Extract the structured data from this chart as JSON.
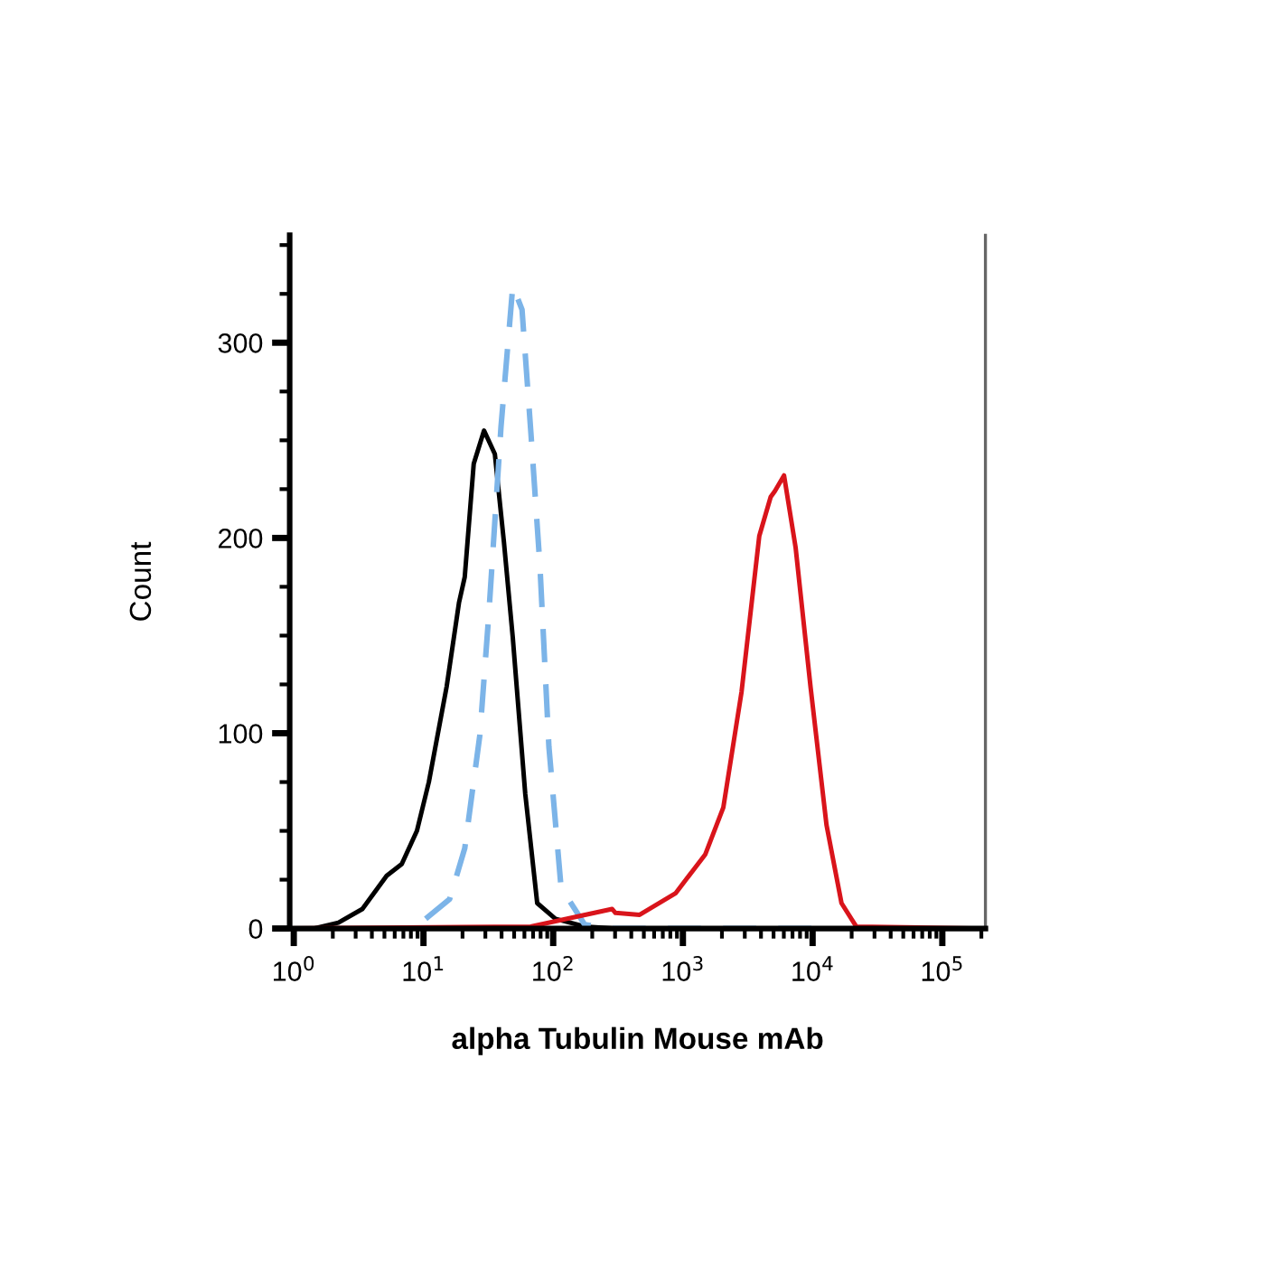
{
  "chart_data": {
    "type": "line",
    "xlabel": "alpha Tubulin Mouse mAb",
    "ylabel": "Count",
    "log": "x",
    "xlim": [
      0.93,
      215000
    ],
    "ylim": [
      0,
      355
    ],
    "xticks": [
      {
        "value": 1,
        "label": "10$^{0}$"
      },
      {
        "value": 2,
        "label": null
      },
      {
        "value": 3,
        "label": null
      },
      {
        "value": 4,
        "label": null
      },
      {
        "value": 5,
        "label": null
      },
      {
        "value": 6,
        "label": null
      },
      {
        "value": 7,
        "label": null
      },
      {
        "value": 8,
        "label": null
      },
      {
        "value": 9,
        "label": null
      },
      {
        "value": 10,
        "label": "10$^{1}$"
      },
      {
        "value": 20,
        "label": null
      },
      {
        "value": 30,
        "label": null
      },
      {
        "value": 40,
        "label": null
      },
      {
        "value": 50,
        "label": null
      },
      {
        "value": 60,
        "label": null
      },
      {
        "value": 70,
        "label": null
      },
      {
        "value": 80,
        "label": null
      },
      {
        "value": 90,
        "label": null
      },
      {
        "value": 100,
        "label": "10$^{2}$"
      },
      {
        "value": 200,
        "label": null
      },
      {
        "value": 300,
        "label": null
      },
      {
        "value": 400,
        "label": null
      },
      {
        "value": 500,
        "label": null
      },
      {
        "value": 600,
        "label": null
      },
      {
        "value": 700,
        "label": null
      },
      {
        "value": 800,
        "label": null
      },
      {
        "value": 900,
        "label": null
      },
      {
        "value": 1000,
        "label": "10$^{3}$"
      },
      {
        "value": 2000,
        "label": null
      },
      {
        "value": 3000,
        "label": null
      },
      {
        "value": 4000,
        "label": null
      },
      {
        "value": 5000,
        "label": null
      },
      {
        "value": 6000,
        "label": null
      },
      {
        "value": 7000,
        "label": null
      },
      {
        "value": 8000,
        "label": null
      },
      {
        "value": 9000,
        "label": null
      },
      {
        "value": 10000,
        "label": "10$^{4}$"
      },
      {
        "value": 20000,
        "label": null
      },
      {
        "value": 30000,
        "label": null
      },
      {
        "value": 40000,
        "label": null
      },
      {
        "value": 50000,
        "label": null
      },
      {
        "value": 60000,
        "label": null
      },
      {
        "value": 70000,
        "label": null
      },
      {
        "value": 80000,
        "label": null
      },
      {
        "value": 90000,
        "label": null
      },
      {
        "value": 100000,
        "label": "10$^{5}$"
      },
      {
        "value": 200000,
        "label": null
      }
    ],
    "yticks": [
      0,
      {
        "value": 25,
        "label": null
      },
      {
        "value": 50,
        "label": null
      },
      {
        "value": 75,
        "label": null
      },
      100,
      {
        "value": 125,
        "label": null
      },
      {
        "value": 150,
        "label": null
      },
      {
        "value": 175,
        "label": null
      },
      200,
      {
        "value": 225,
        "label": null
      },
      {
        "value": 250,
        "label": null
      },
      {
        "value": 275,
        "label": null
      },
      300,
      {
        "value": 325,
        "label": null
      },
      {
        "value": 350,
        "label": null
      }
    ],
    "grid": false,
    "legend": false,
    "series": [
      {
        "color": "#000000",
        "line_style": "solid",
        "x": [
          1.42,
          2.21,
          3.38,
          5.2,
          6.8,
          8.9,
          11,
          15.1,
          18.8,
          20.8,
          24.4,
          29.3,
          35.5,
          41.7,
          48.8,
          60.9,
          75.3,
          104,
          175,
          300
        ],
        "values": [
          0,
          3,
          10,
          27,
          33,
          50,
          75,
          124,
          167,
          180,
          238,
          255,
          243,
          198,
          149,
          69,
          13,
          5,
          1,
          0
        ]
      },
      {
        "color": "#7cb4e8",
        "line_style": "dashed",
        "x": [
          10.4,
          15.9,
          20.8,
          27.2,
          31.9,
          39.6,
          48.8,
          57.5,
          67.3,
          79,
          92.7,
          115,
          175,
          270,
          10000
        ],
        "values": [
          5,
          15,
          41,
          99,
          161,
          257,
          329,
          317,
          254,
          186,
          93,
          21,
          2,
          0,
          0
        ]
      },
      {
        "color": "#d9141b",
        "line_style": "solid",
        "x": [
          0.95,
          67,
          176,
          285,
          302,
          464,
          877,
          1490,
          2050,
          2830,
          3880,
          4750,
          5120,
          6020,
          7400,
          9630,
          12800,
          16700,
          21700,
          205000
        ],
        "values": [
          0,
          1,
          7,
          10,
          8,
          7,
          18,
          38,
          62,
          121,
          201,
          221,
          224,
          232,
          195,
          124,
          53,
          13,
          1,
          0
        ]
      }
    ]
  }
}
